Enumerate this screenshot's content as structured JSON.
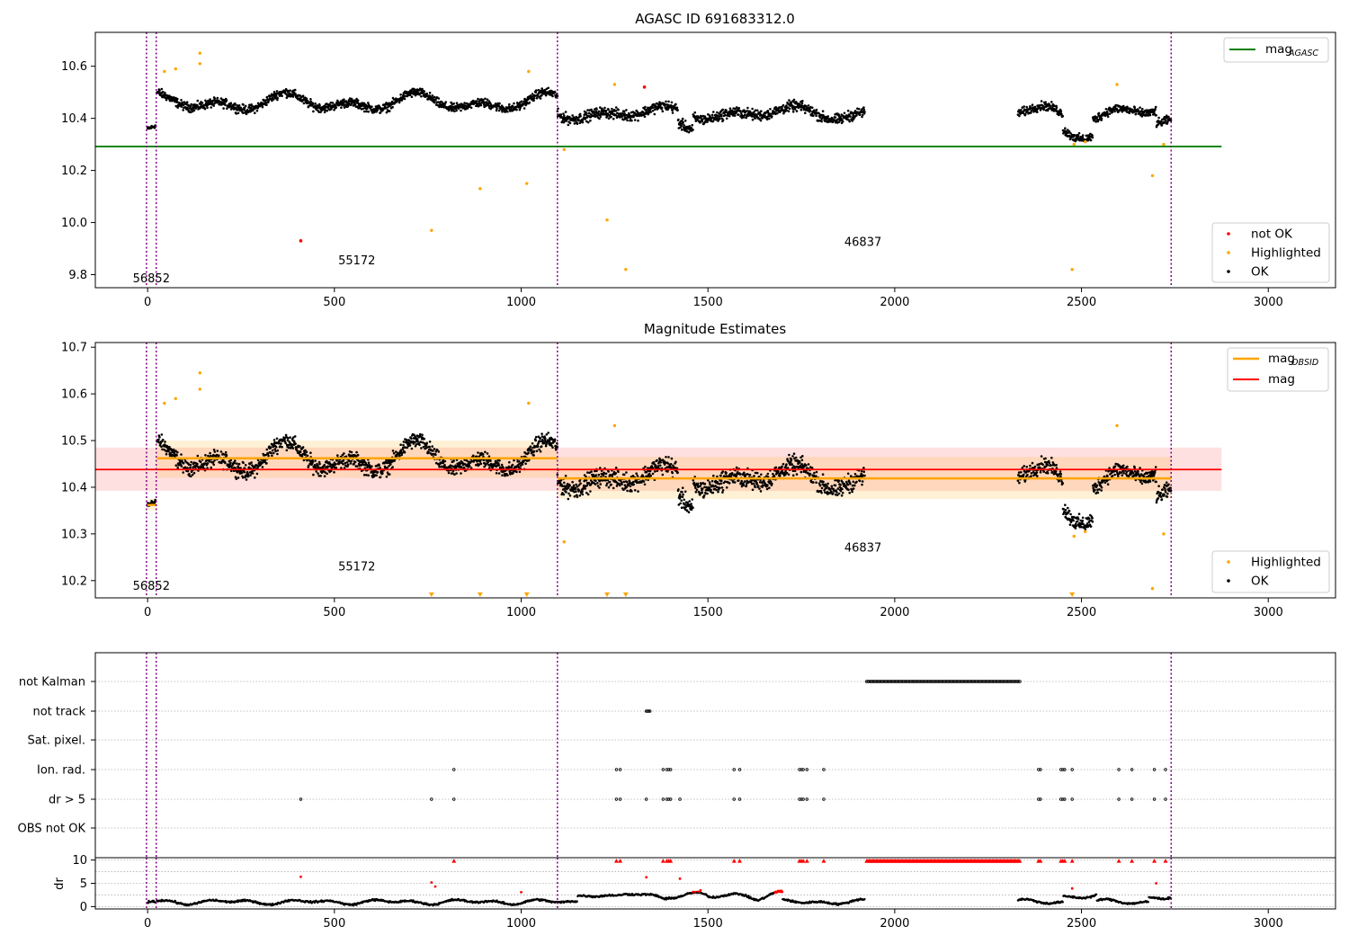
{
  "chart_data": [
    {
      "id": "panel1",
      "type": "scatter",
      "title": "AGASC ID 691683312.0",
      "xlim": [
        -140,
        3180
      ],
      "ylim": [
        9.75,
        10.73
      ],
      "xticks": [
        0,
        500,
        1000,
        1500,
        2000,
        2500,
        3000
      ],
      "yticks": [
        9.8,
        10.0,
        10.2,
        10.4,
        10.6
      ],
      "ytick_labels": [
        "9.8",
        "10.0",
        "10.2",
        "10.4",
        "10.6"
      ],
      "vlines": [
        -3,
        23,
        1097,
        2740
      ],
      "hline": {
        "name": "mag_AGASC",
        "y": 10.292,
        "x_range": [
          -140,
          2875
        ],
        "color": "#008000"
      },
      "obsid_annotations": [
        {
          "text": "56852",
          "x": 10,
          "y": 9.77
        },
        {
          "text": "55172",
          "x": 560,
          "y": 9.84
        },
        {
          "text": "46837",
          "x": 1915,
          "y": 9.91
        }
      ],
      "segments": [
        {
          "x0": 0,
          "x1": 22,
          "base": 10.36,
          "amp": 0.02,
          "noise": 0.01
        },
        {
          "x0": 25,
          "x1": 1097,
          "base": 10.46,
          "amp": 0.04,
          "noise": 0.025
        },
        {
          "x0": 1097,
          "x1": 1920,
          "base": 10.42,
          "amp": 0.03,
          "noise": 0.03
        },
        {
          "x0": 2330,
          "x1": 2740,
          "base": 10.42,
          "amp": 0.04,
          "noise": 0.025
        }
      ],
      "highlighted": [
        {
          "x": 45,
          "y": 10.58
        },
        {
          "x": 75,
          "y": 10.59
        },
        {
          "x": 140,
          "y": 10.65
        },
        {
          "x": 140,
          "y": 10.61
        },
        {
          "x": 760,
          "y": 9.97
        },
        {
          "x": 890,
          "y": 10.13
        },
        {
          "x": 1015,
          "y": 10.15
        },
        {
          "x": 1020,
          "y": 10.58
        },
        {
          "x": 1115,
          "y": 10.28
        },
        {
          "x": 1230,
          "y": 10.01
        },
        {
          "x": 1250,
          "y": 10.53
        },
        {
          "x": 1280,
          "y": 9.82
        },
        {
          "x": 2475,
          "y": 9.82
        },
        {
          "x": 2480,
          "y": 10.3
        },
        {
          "x": 2510,
          "y": 10.31
        },
        {
          "x": 2595,
          "y": 10.53
        },
        {
          "x": 2690,
          "y": 10.18
        },
        {
          "x": 2720,
          "y": 10.3
        }
      ],
      "not_ok": [
        {
          "x": 410,
          "y": 9.93
        },
        {
          "x": 1330,
          "y": 10.52
        }
      ],
      "legend_upper": [
        {
          "label": "mag",
          "sub": "AGASC",
          "color": "#008000"
        }
      ],
      "legend_lower": [
        {
          "label": "not OK",
          "color": "#ff0000"
        },
        {
          "label": "Highlighted",
          "color": "#ffa500"
        },
        {
          "label": "OK",
          "color": "#000000"
        }
      ]
    },
    {
      "id": "panel2",
      "type": "scatter",
      "title": "Magnitude Estimates",
      "xlim": [
        -140,
        3180
      ],
      "ylim": [
        10.163,
        10.71
      ],
      "xticks": [
        0,
        500,
        1000,
        1500,
        2000,
        2500,
        3000
      ],
      "yticks": [
        10.2,
        10.3,
        10.4,
        10.5,
        10.6,
        10.7
      ],
      "ytick_labels": [
        "10.2",
        "10.3",
        "10.4",
        "10.5",
        "10.6",
        "10.7"
      ],
      "vlines": [
        -3,
        23,
        1097,
        2740
      ],
      "mag": {
        "name": "mag",
        "y": 10.438,
        "band": [
          10.392,
          10.485
        ],
        "x_range": [
          -140,
          2875
        ],
        "color": "#ff0000"
      },
      "mag_obsid": [
        {
          "x0": 0,
          "x1": 25,
          "y": 10.362,
          "band": [
            10.35,
            10.375
          ]
        },
        {
          "x0": 25,
          "x1": 1097,
          "y": 10.462,
          "band": [
            10.42,
            10.5
          ]
        },
        {
          "x0": 1097,
          "x1": 2740,
          "y": 10.419,
          "band": [
            10.375,
            10.465
          ]
        }
      ],
      "obsid_annotations": [
        {
          "text": "56852",
          "x": 10,
          "y": 10.18
        },
        {
          "text": "55172",
          "x": 560,
          "y": 10.222
        },
        {
          "text": "46837",
          "x": 1915,
          "y": 10.262
        }
      ],
      "highlighted": [
        {
          "x": 45,
          "y": 10.58
        },
        {
          "x": 75,
          "y": 10.59
        },
        {
          "x": 140,
          "y": 10.645
        },
        {
          "x": 140,
          "y": 10.61
        },
        {
          "x": 1020,
          "y": 10.58
        },
        {
          "x": 1115,
          "y": 10.283
        },
        {
          "x": 1250,
          "y": 10.532
        },
        {
          "x": 2480,
          "y": 10.295
        },
        {
          "x": 2510,
          "y": 10.305
        },
        {
          "x": 2595,
          "y": 10.532
        },
        {
          "x": 2690,
          "y": 10.183
        },
        {
          "x": 2720,
          "y": 10.3
        }
      ],
      "highlighted_below_axis": [
        760,
        890,
        1015,
        1230,
        1280,
        2475
      ],
      "legend_upper": [
        {
          "label": "mag",
          "sub": "OBSID",
          "color": "#ffa500"
        },
        {
          "label": "mag",
          "sub": "",
          "color": "#ff0000"
        }
      ],
      "legend_lower": [
        {
          "label": "Highlighted",
          "color": "#ffa500"
        },
        {
          "label": "OK",
          "color": "#000000"
        }
      ]
    },
    {
      "id": "panel3",
      "type": "scatter",
      "title": "",
      "xlim": [
        -140,
        3180
      ],
      "vlines": [
        -3,
        23,
        1097,
        2740
      ],
      "flag_categories": [
        "not Kalman",
        "not track",
        "Sat. pixel.",
        "Ion. rad.",
        "dr > 5",
        "OBS not OK"
      ],
      "flags": {
        "not Kalman": {
          "ranges": [
            [
              1925,
              2335
            ]
          ],
          "points": []
        },
        "not track": {
          "ranges": [
            [
              1335,
              1345
            ]
          ],
          "points": []
        },
        "Sat. pixel.": {
          "ranges": [],
          "points": []
        },
        "Ion. rad.": {
          "ranges": [],
          "points": [
            820,
            1255,
            1265,
            1380,
            1390,
            1395,
            1400,
            1570,
            1585,
            1745,
            1750,
            1755,
            1765,
            1810,
            2385,
            2390,
            2445,
            2450,
            2455,
            2475,
            2600,
            2635,
            2695,
            2725
          ]
        },
        "dr > 5": {
          "ranges": [],
          "points": [
            410,
            760,
            820,
            1255,
            1265,
            1335,
            1380,
            1390,
            1395,
            1400,
            1425,
            1570,
            1585,
            1745,
            1750,
            1755,
            1765,
            1810,
            2385,
            2390,
            2445,
            2450,
            2455,
            2475,
            2600,
            2635,
            2695,
            2725
          ]
        },
        "OBS not OK": {
          "ranges": [],
          "points": []
        }
      }
    },
    {
      "id": "panel4",
      "type": "scatter",
      "ylabel": "dr",
      "xlim": [
        -140,
        3180
      ],
      "ylim": [
        -0.5,
        10.5
      ],
      "xticks": [
        0,
        500,
        1000,
        1500,
        2000,
        2500,
        3000
      ],
      "yticks": [
        0,
        5,
        10
      ],
      "ytick_labels": [
        "0",
        "5",
        "10"
      ],
      "vlines": [
        -3,
        23,
        1097,
        2740
      ],
      "clipped_markers": [
        820,
        1255,
        1265,
        1380,
        1390,
        1395,
        1400,
        1570,
        1585,
        1745,
        1750,
        1755,
        1765,
        1810,
        2385,
        2390,
        2445,
        2450,
        2455,
        2475,
        2600,
        2635,
        2695,
        2725
      ],
      "clipped_range": [
        1925,
        2335
      ],
      "red_points": [
        {
          "x": 410,
          "y": 6.4
        },
        {
          "x": 760,
          "y": 5.2
        },
        {
          "x": 770,
          "y": 4.3
        },
        {
          "x": 1335,
          "y": 6.3
        },
        {
          "x": 1425,
          "y": 6.0
        },
        {
          "x": 1480,
          "y": 3.5
        },
        {
          "x": 1000,
          "y": 3.1
        },
        {
          "x": 2475,
          "y": 3.9
        },
        {
          "x": 2700,
          "y": 5.0
        }
      ]
    }
  ],
  "colors": {
    "ok": "#000000",
    "highlighted": "#ffa500",
    "not_ok": "#ff0000",
    "vline": "#800080",
    "mag_agasc": "#008000",
    "mag": "#ff0000",
    "mag_obsid": "#ffa500"
  }
}
